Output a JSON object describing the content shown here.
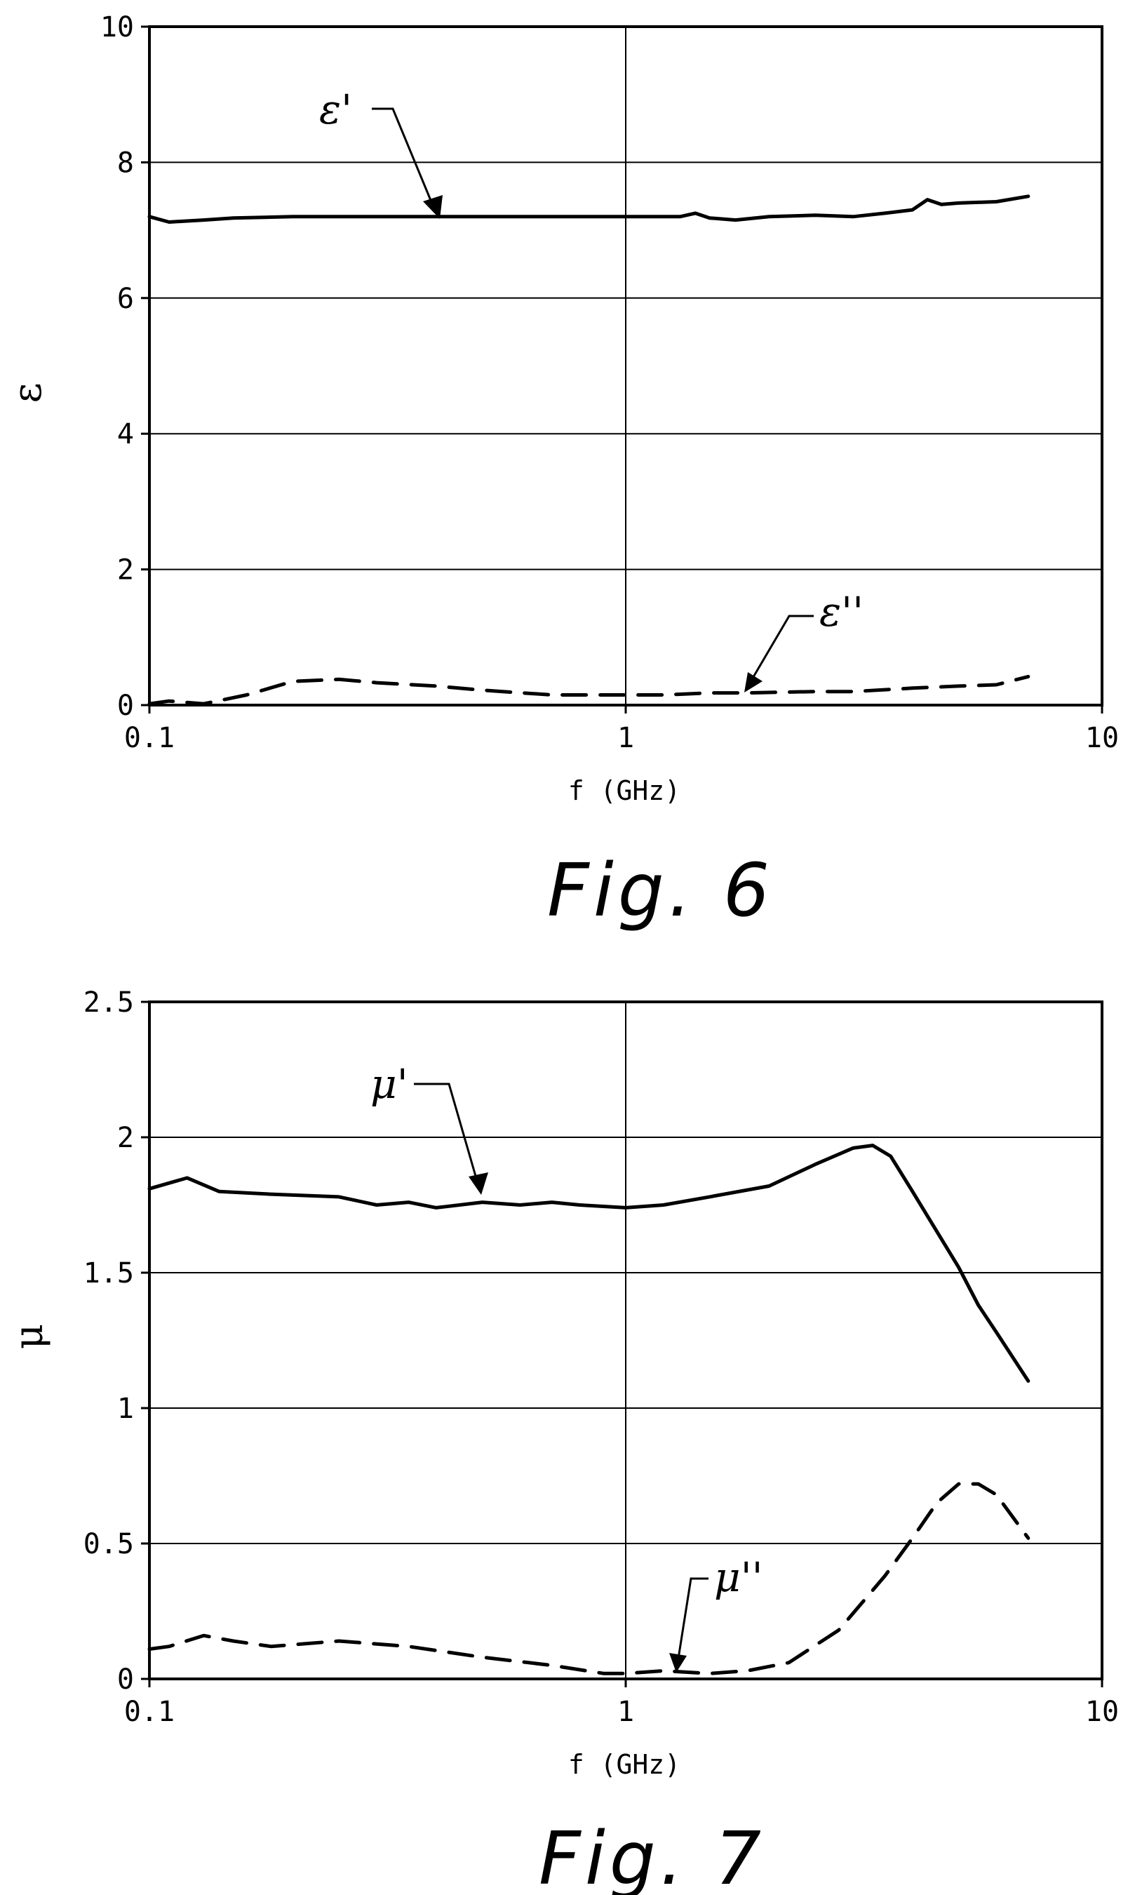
{
  "figures": [
    {
      "caption": "Fig. 6",
      "xlabel": "f (GHz)",
      "ylabel": "ε",
      "annotations": [
        {
          "text": "ε'",
          "series": 0
        },
        {
          "text": "ε''",
          "series": 1
        }
      ]
    },
    {
      "caption": "Fig. 7",
      "xlabel": "f (GHz)",
      "ylabel": "μ",
      "annotations": [
        {
          "text": "μ'",
          "series": 0
        },
        {
          "text": "μ''",
          "series": 1
        }
      ]
    }
  ],
  "chart_data": [
    {
      "type": "line",
      "xlabel": "f (GHz)",
      "ylabel": "ε",
      "xscale": "log",
      "xlim": [
        0.1,
        10
      ],
      "ylim": [
        0,
        10
      ],
      "xticks": [
        "0.1",
        "1",
        "10"
      ],
      "yticks": [
        "0",
        "2",
        "4",
        "6",
        "8",
        "10"
      ],
      "grid": true,
      "series": [
        {
          "name": "ε'",
          "style": "solid",
          "x": [
            0.1,
            0.11,
            0.13,
            0.15,
            0.2,
            0.3,
            0.5,
            0.8,
            1.0,
            1.3,
            1.4,
            1.5,
            1.7,
            2.0,
            2.5,
            3.0,
            3.5,
            4.0,
            4.3,
            4.6,
            5.0,
            6.0,
            7.0
          ],
          "y": [
            7.2,
            7.12,
            7.15,
            7.18,
            7.2,
            7.2,
            7.2,
            7.2,
            7.2,
            7.2,
            7.25,
            7.18,
            7.15,
            7.2,
            7.22,
            7.2,
            7.25,
            7.3,
            7.45,
            7.38,
            7.4,
            7.42,
            7.5
          ]
        },
        {
          "name": "ε''",
          "style": "dashed",
          "x": [
            0.1,
            0.11,
            0.13,
            0.16,
            0.2,
            0.25,
            0.3,
            0.4,
            0.5,
            0.7,
            1.0,
            1.2,
            1.5,
            1.8,
            2.5,
            3.0,
            4.0,
            5.0,
            6.0,
            7.0
          ],
          "y": [
            0.02,
            0.06,
            0.02,
            0.15,
            0.35,
            0.38,
            0.33,
            0.28,
            0.22,
            0.15,
            0.15,
            0.15,
            0.18,
            0.18,
            0.2,
            0.2,
            0.25,
            0.28,
            0.3,
            0.42
          ]
        }
      ]
    },
    {
      "type": "line",
      "xlabel": "f (GHz)",
      "ylabel": "μ",
      "xscale": "log",
      "xlim": [
        0.1,
        10
      ],
      "ylim": [
        0,
        2.5
      ],
      "xticks": [
        "0.1",
        "1",
        "10"
      ],
      "yticks": [
        "0",
        "0.5",
        "1",
        "1.5",
        "2",
        "2.5"
      ],
      "grid": true,
      "series": [
        {
          "name": "μ'",
          "style": "solid",
          "x": [
            0.1,
            0.12,
            0.14,
            0.18,
            0.25,
            0.3,
            0.35,
            0.4,
            0.5,
            0.6,
            0.7,
            0.8,
            1.0,
            1.2,
            1.5,
            2.0,
            2.5,
            3.0,
            3.3,
            3.6,
            4.0,
            5.0,
            5.5,
            6.0,
            7.0
          ],
          "y": [
            1.81,
            1.85,
            1.8,
            1.79,
            1.78,
            1.75,
            1.76,
            1.74,
            1.76,
            1.75,
            1.76,
            1.75,
            1.74,
            1.75,
            1.78,
            1.82,
            1.9,
            1.96,
            1.97,
            1.93,
            1.8,
            1.52,
            1.38,
            1.28,
            1.1
          ]
        },
        {
          "name": "μ''",
          "style": "dashed",
          "x": [
            0.1,
            0.11,
            0.13,
            0.15,
            0.18,
            0.25,
            0.35,
            0.5,
            0.7,
            0.9,
            1.0,
            1.2,
            1.5,
            1.8,
            2.2,
            2.8,
            3.5,
            4.0,
            4.5,
            5.0,
            5.5,
            6.0,
            7.0
          ],
          "y": [
            0.11,
            0.12,
            0.16,
            0.14,
            0.12,
            0.14,
            0.12,
            0.08,
            0.05,
            0.02,
            0.02,
            0.03,
            0.02,
            0.03,
            0.06,
            0.18,
            0.38,
            0.52,
            0.65,
            0.72,
            0.72,
            0.68,
            0.52
          ]
        }
      ]
    }
  ]
}
